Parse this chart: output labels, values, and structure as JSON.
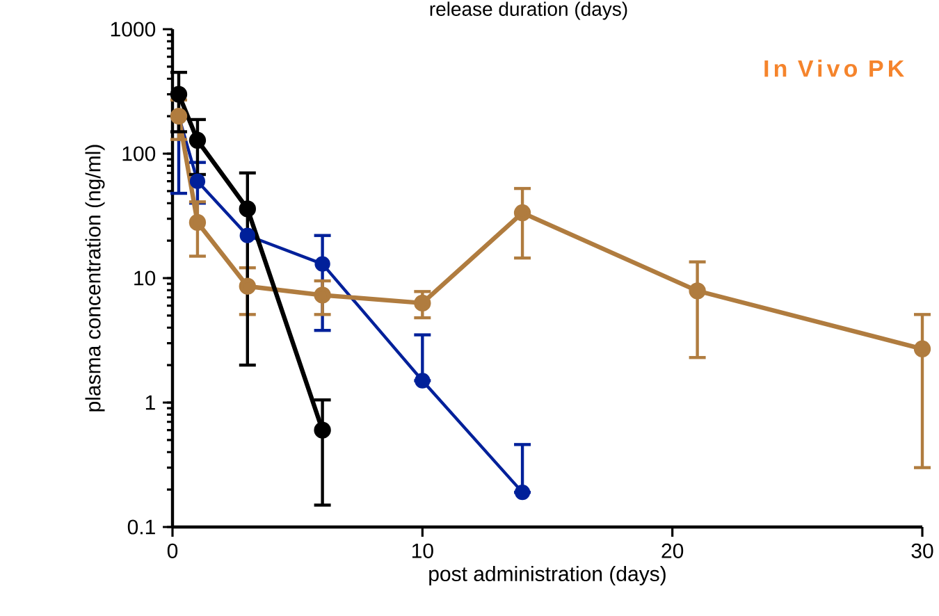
{
  "chart_data": {
    "type": "line",
    "xlabel": "post administration (days)",
    "ylabel": "plasma concentration (ng/ml)",
    "log": "y",
    "xlim": [
      0,
      30
    ],
    "xticks": [
      0,
      10,
      20,
      30
    ],
    "ylim": [
      0.1,
      1000
    ],
    "yticks": [
      0.1,
      1,
      10,
      100,
      1000
    ],
    "marker": "circle",
    "line_style": "solid",
    "grid": false,
    "annotations": [
      "release duration (days)",
      "In Vivo PK"
    ],
    "series": [
      {
        "color": "#00209a",
        "x": [
          0.25,
          1,
          3,
          6,
          10,
          14
        ],
        "values": [
          200,
          60,
          22,
          13,
          1.5,
          0.19
        ],
        "errors": [
          [
            48,
            200
          ],
          [
            40,
            85
          ],
          null,
          [
            3.8,
            22
          ],
          [
            1.5,
            3.5
          ],
          [
            0.19,
            0.46
          ]
        ]
      },
      {
        "color": "#b07c3f",
        "x": [
          0.25,
          1,
          3,
          6,
          10,
          14,
          21,
          30
        ],
        "values": [
          200,
          28,
          8.6,
          7.3,
          6.3,
          33.5,
          7.9,
          2.7
        ],
        "errors": [
          70,
          13,
          3.5,
          2.2,
          1.5,
          19,
          5.6,
          2.4
        ]
      },
      {
        "color": "#000000",
        "x": [
          0.25,
          1,
          3,
          6
        ],
        "values": [
          300,
          128,
          36,
          0.6
        ],
        "errors": [
          150,
          60,
          34,
          0.45
        ]
      }
    ]
  }
}
